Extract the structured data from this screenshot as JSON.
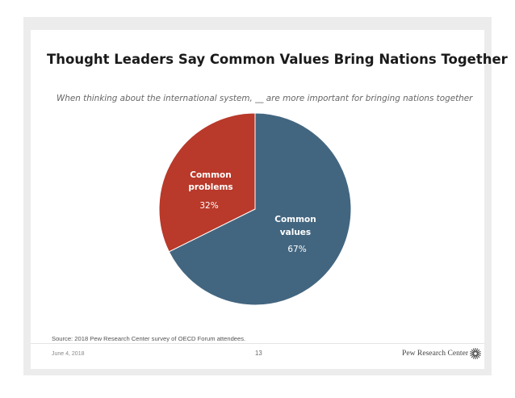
{
  "chart_data": {
    "type": "pie",
    "title": "Thought Leaders Say Common Values Bring Nations Together",
    "subtitle": "When thinking about the international system, __ are more important for bringing nations together",
    "slices": [
      {
        "label_lines": [
          "Common",
          "values"
        ],
        "value": 67,
        "value_label": "67%",
        "color": "#436680"
      },
      {
        "label_lines": [
          "Common",
          "problems"
        ],
        "value": 32,
        "value_label": "32%",
        "color": "#b9392a"
      }
    ]
  },
  "footer": {
    "source": "Source: 2018 Pew Research Center survey of OECD Forum attendees.",
    "date": "June 4, 2018",
    "page_number": "13",
    "brand": "Pew Research Center"
  }
}
